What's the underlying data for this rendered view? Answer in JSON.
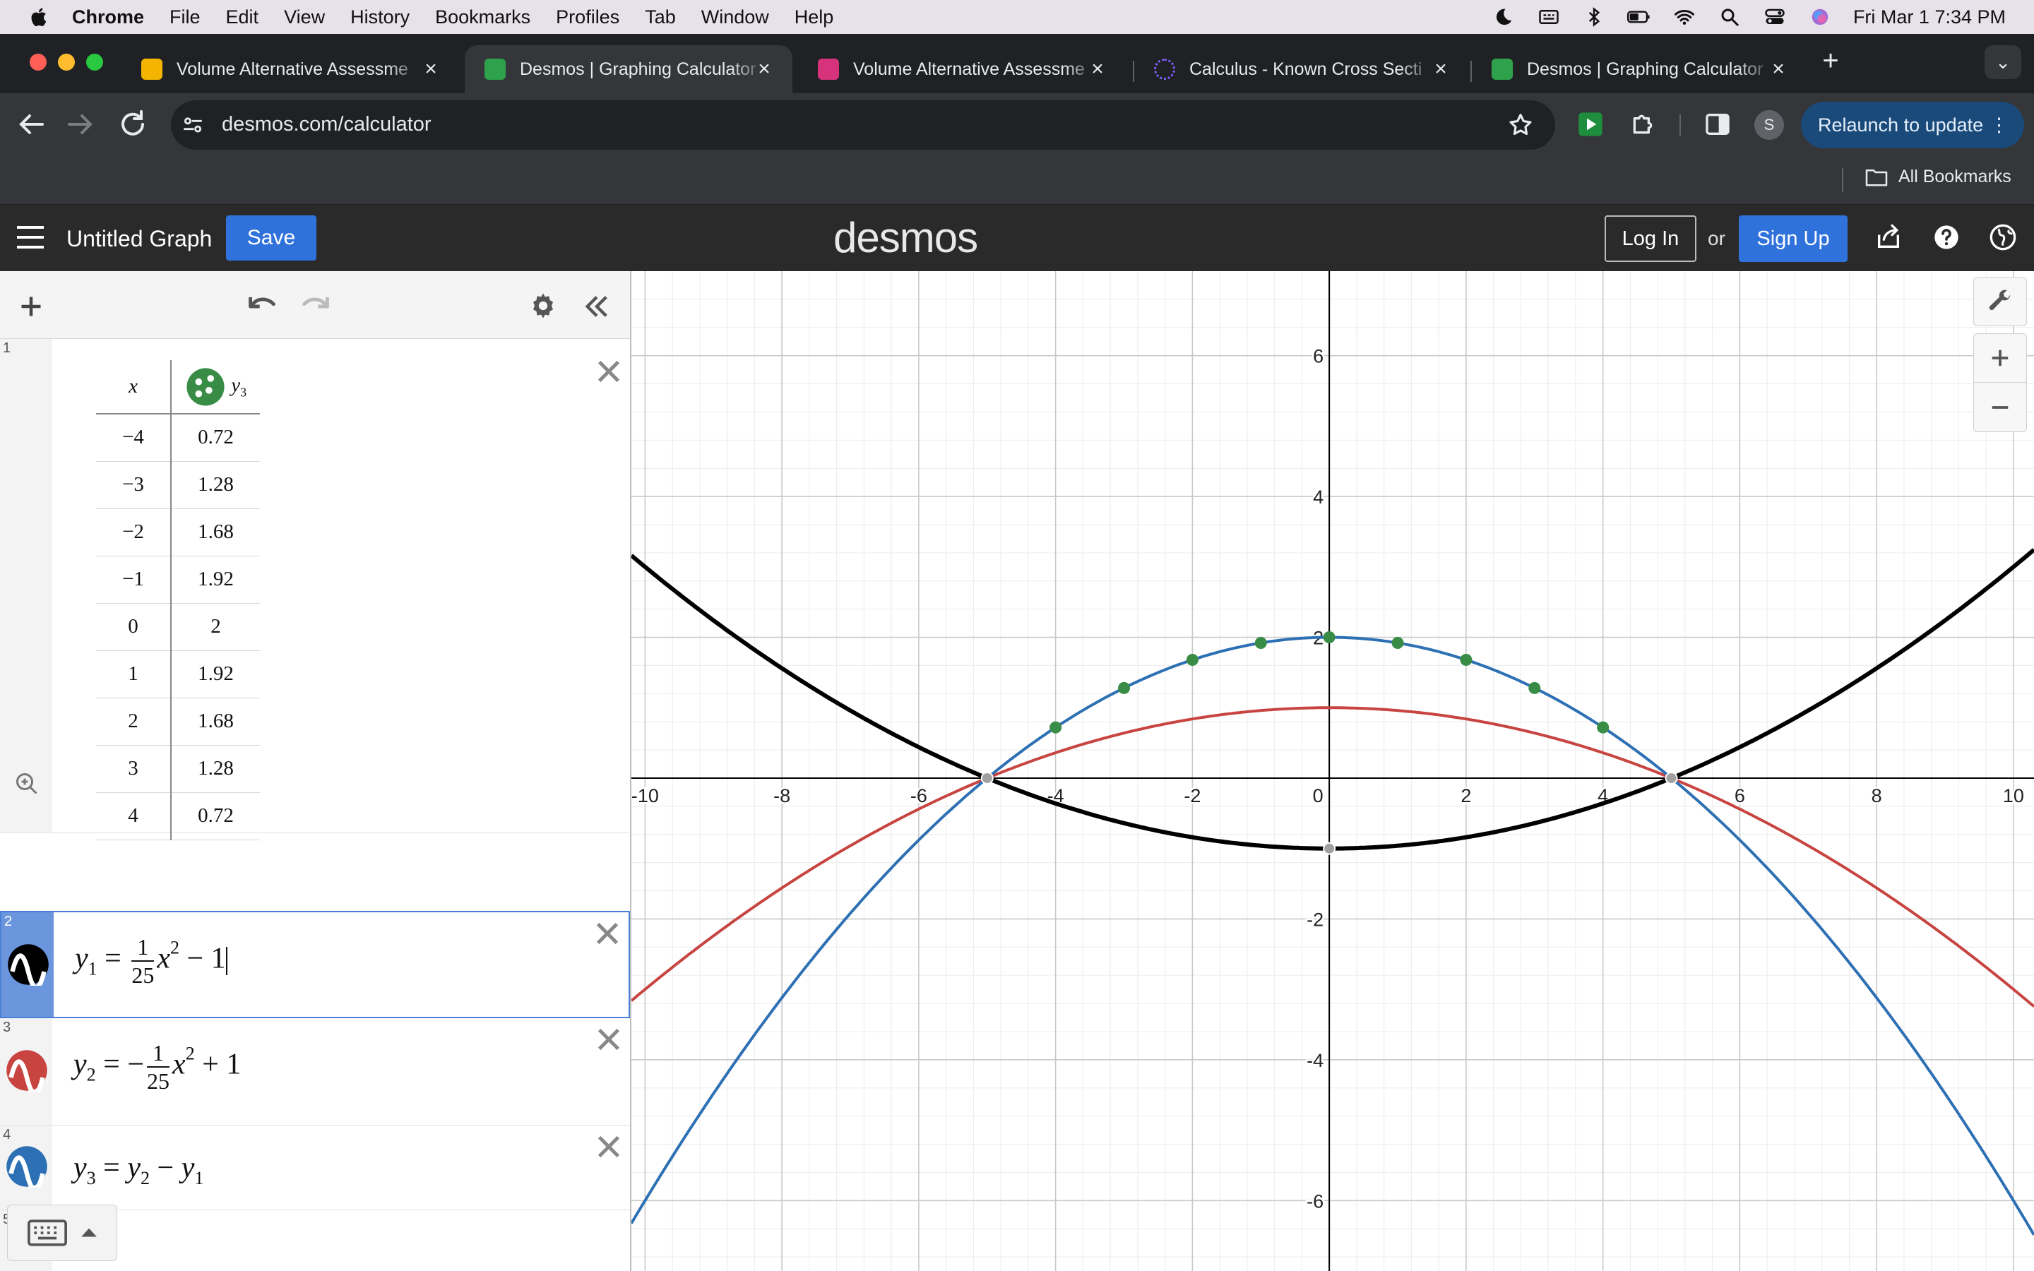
{
  "menubar": {
    "app": "Chrome",
    "items": [
      "File",
      "Edit",
      "View",
      "History",
      "Bookmarks",
      "Profiles",
      "Tab",
      "Window",
      "Help"
    ],
    "clock": "Fri Mar 1  7:34 PM"
  },
  "tabs": [
    {
      "title": "Volume Alternative Assessme",
      "favicon_color": "#f4b400",
      "active": false
    },
    {
      "title": "Desmos | Graphing Calculator",
      "favicon_color": "#2da14b",
      "active": true
    },
    {
      "title": "Volume Alternative Assessme",
      "favicon_color": "#d6337c",
      "active": false
    },
    {
      "title": "Calculus - Known Cross Secti",
      "favicon_color": "#7b61ff",
      "active": false
    },
    {
      "title": "Desmos | Graphing Calculator",
      "favicon_color": "#2da14b",
      "active": false
    }
  ],
  "address": {
    "url": "desmos.com/calculator"
  },
  "profile_initial": "S",
  "relaunch_label": "Relaunch to update",
  "bookmarks": {
    "all_label": "All Bookmarks"
  },
  "desmos": {
    "graph_title": "Untitled Graph",
    "save_label": "Save",
    "logo": "desmos",
    "login_label": "Log In",
    "or_label": "or",
    "signup_label": "Sign Up"
  },
  "table": {
    "row_number": "1",
    "x_header": "x",
    "y_header_var": "y",
    "y_header_sub": "3",
    "rows": [
      {
        "x": "−4",
        "y": "0.72"
      },
      {
        "x": "−3",
        "y": "1.28"
      },
      {
        "x": "−2",
        "y": "1.68"
      },
      {
        "x": "−1",
        "y": "1.92"
      },
      {
        "x": "0",
        "y": "2"
      },
      {
        "x": "1",
        "y": "1.92"
      },
      {
        "x": "2",
        "y": "1.68"
      },
      {
        "x": "3",
        "y": "1.28"
      },
      {
        "x": "4",
        "y": "0.72"
      }
    ]
  },
  "expressions": [
    {
      "number": "2",
      "lhs_var": "y",
      "lhs_sub": "1",
      "eq": "=",
      "sign": "",
      "frac_num": "1",
      "frac_den": "25",
      "var": "x",
      "pow": "2",
      "tail": "− 1",
      "color": "#000000",
      "selected": true
    },
    {
      "number": "3",
      "lhs_var": "y",
      "lhs_sub": "2",
      "eq": "=",
      "sign": "−",
      "frac_num": "1",
      "frac_den": "25",
      "var": "x",
      "pow": "2",
      "tail": "+ 1",
      "color": "#c74440",
      "selected": false
    },
    {
      "number": "4",
      "lhs_var": "y",
      "lhs_sub": "3",
      "eq": "=",
      "rhs_a": "y",
      "rhs_a_sub": "2",
      "op": "−",
      "rhs_b": "y",
      "rhs_b_sub": "1",
      "color": "#2d70b3",
      "selected": false
    }
  ],
  "empty_row_number": "5",
  "graph": {
    "x_range": [
      -10.2,
      10.3
    ],
    "y_range": [
      -7,
      7.2
    ],
    "x_tick_labels": [
      "-10",
      "-8",
      "-6",
      "-4",
      "-2",
      "0",
      "2",
      "4",
      "6",
      "8",
      "10"
    ],
    "y_tick_labels": [
      "6",
      "4",
      "2",
      "-2",
      "-4",
      "-6"
    ],
    "curve_colors": {
      "y1": "#000000",
      "y2": "#c74440",
      "y3": "#2d70b3",
      "points": "#388c46"
    }
  }
}
